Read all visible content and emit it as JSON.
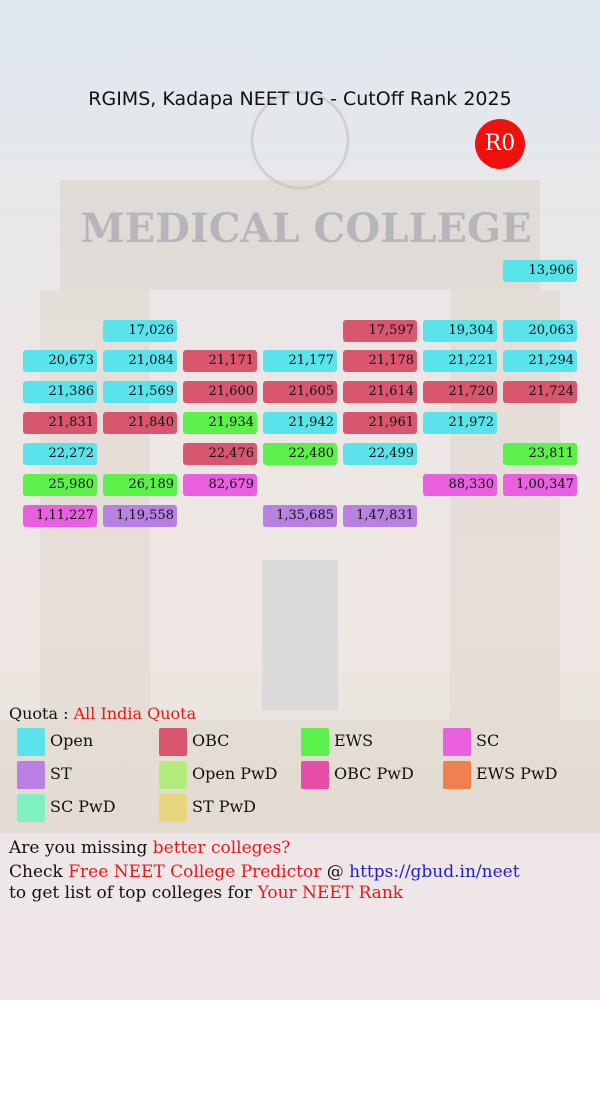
{
  "header": {
    "title": "RGIMS, Kadapa NEET UG - CutOff Rank 2025",
    "round": "R0",
    "background_sign": "MEDICAL COLLEGE"
  },
  "grid": {
    "rows": [
      [
        null,
        null,
        null,
        null,
        null,
        null,
        {
          "text": "13,906",
          "quota": "Open"
        }
      ],
      [
        null,
        {
          "text": "17,026",
          "quota": "Open"
        },
        null,
        null,
        {
          "text": "17,597",
          "quota": "OBC"
        },
        {
          "text": "19,304",
          "quota": "Open"
        },
        {
          "text": "20,063",
          "quota": "Open"
        }
      ],
      [
        {
          "text": "20,673",
          "quota": "Open"
        },
        {
          "text": "21,084",
          "quota": "Open"
        },
        {
          "text": "21,171",
          "quota": "OBC"
        },
        {
          "text": "21,177",
          "quota": "Open"
        },
        {
          "text": "21,178",
          "quota": "OBC"
        },
        {
          "text": "21,221",
          "quota": "Open"
        },
        {
          "text": "21,294",
          "quota": "Open"
        }
      ],
      [
        {
          "text": "21,386",
          "quota": "Open"
        },
        {
          "text": "21,569",
          "quota": "Open"
        },
        {
          "text": "21,600",
          "quota": "OBC"
        },
        {
          "text": "21,605",
          "quota": "OBC"
        },
        {
          "text": "21,614",
          "quota": "OBC"
        },
        {
          "text": "21,720",
          "quota": "OBC"
        },
        {
          "text": "21,724",
          "quota": "OBC"
        }
      ],
      [
        {
          "text": "21,831",
          "quota": "OBC"
        },
        {
          "text": "21,840",
          "quota": "OBC"
        },
        {
          "text": "21,934",
          "quota": "EWS"
        },
        {
          "text": "21,942",
          "quota": "Open"
        },
        {
          "text": "21,961",
          "quota": "OBC"
        },
        {
          "text": "21,972",
          "quota": "Open"
        },
        null
      ],
      [
        {
          "text": "22,272",
          "quota": "Open"
        },
        null,
        {
          "text": "22,476",
          "quota": "OBC"
        },
        {
          "text": "22,480",
          "quota": "EWS"
        },
        {
          "text": "22,499",
          "quota": "Open"
        },
        null,
        {
          "text": "23,811",
          "quota": "EWS"
        }
      ],
      [
        {
          "text": "25,980",
          "quota": "EWS"
        },
        {
          "text": "26,189",
          "quota": "EWS"
        },
        {
          "text": "82,679",
          "quota": "SC"
        },
        null,
        null,
        {
          "text": "88,330",
          "quota": "SC"
        },
        {
          "text": "1,00,347",
          "quota": "SC"
        }
      ],
      [
        {
          "text": "1,11,227",
          "quota": "SC"
        },
        {
          "text": "1,19,558",
          "quota": "ST"
        },
        null,
        {
          "text": "1,35,685",
          "quota": "ST"
        },
        {
          "text": "1,47,831",
          "quota": "ST"
        },
        null,
        null
      ]
    ]
  },
  "legend": {
    "label": "Quota :",
    "quota": "All India Quota",
    "items": [
      {
        "name": "Open",
        "color": "#5ae3ea"
      },
      {
        "name": "OBC",
        "color": "#d9566f"
      },
      {
        "name": "EWS",
        "color": "#5cf04a"
      },
      {
        "name": "SC",
        "color": "#e860e0"
      },
      {
        "name": "ST",
        "color": "#b880e2"
      },
      {
        "name": "Open PwD",
        "color": "#b3ee7c"
      },
      {
        "name": "OBC PwD",
        "color": "#e64ca8"
      },
      {
        "name": "EWS PwD",
        "color": "#f0804f"
      },
      {
        "name": "SC PwD",
        "color": "#80f0c2"
      },
      {
        "name": "ST PwD",
        "color": "#e8d67c"
      }
    ]
  },
  "footer": {
    "line1": [
      "Are you missing ",
      "better colleges?"
    ],
    "line2": [
      "Check ",
      "Free NEET College Predictor",
      " @ ",
      "https://gbud.in/neet"
    ],
    "line3": [
      "to get list of top colleges for ",
      "Your NEET Rank"
    ]
  }
}
